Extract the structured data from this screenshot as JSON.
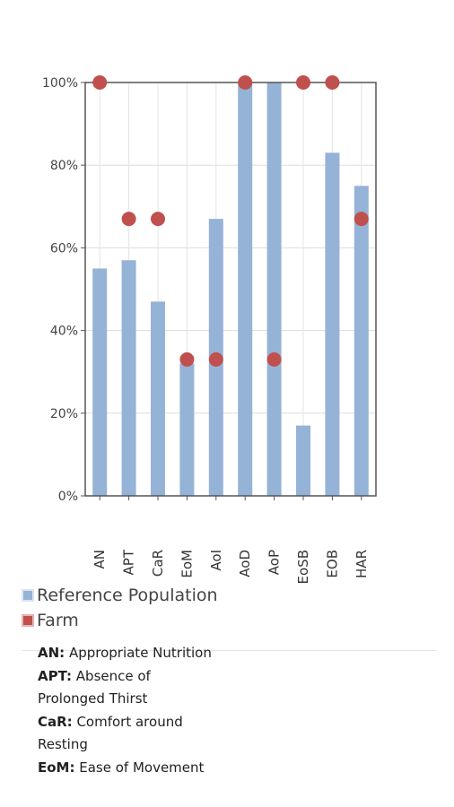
{
  "chart_data": {
    "type": "bar",
    "categories": [
      "AN",
      "APT",
      "CaR",
      "EoM",
      "AoI",
      "AoD",
      "AoP",
      "EoSB",
      "EOB",
      "HAR"
    ],
    "series": [
      {
        "name": "Reference Population",
        "kind": "bar",
        "color": "#95b3d7",
        "values": [
          55,
          57,
          47,
          32,
          67,
          100,
          100,
          17,
          83,
          75
        ]
      },
      {
        "name": "Farm",
        "kind": "point",
        "color": "#c0504d",
        "values": [
          100,
          67,
          67,
          33,
          33,
          100,
          33,
          100,
          100,
          67
        ]
      }
    ],
    "yticks": [
      "0%",
      "20%",
      "40%",
      "60%",
      "80%",
      "100%"
    ],
    "ylim": [
      0,
      100
    ],
    "grid": true
  },
  "legend": [
    {
      "label": "Reference Population",
      "color": "#95b3d7"
    },
    {
      "label": "Farm",
      "color": "#c0504d"
    }
  ],
  "glossary": [
    {
      "abbr": "AN:",
      "text": " Appropriate Nutrition"
    },
    {
      "abbr": "APT:",
      "text": " Absence of Prolonged Thirst"
    },
    {
      "abbr": "CaR:",
      "text": " Comfort around Resting"
    },
    {
      "abbr": "EoM:",
      "text": " Ease of Movement"
    }
  ]
}
